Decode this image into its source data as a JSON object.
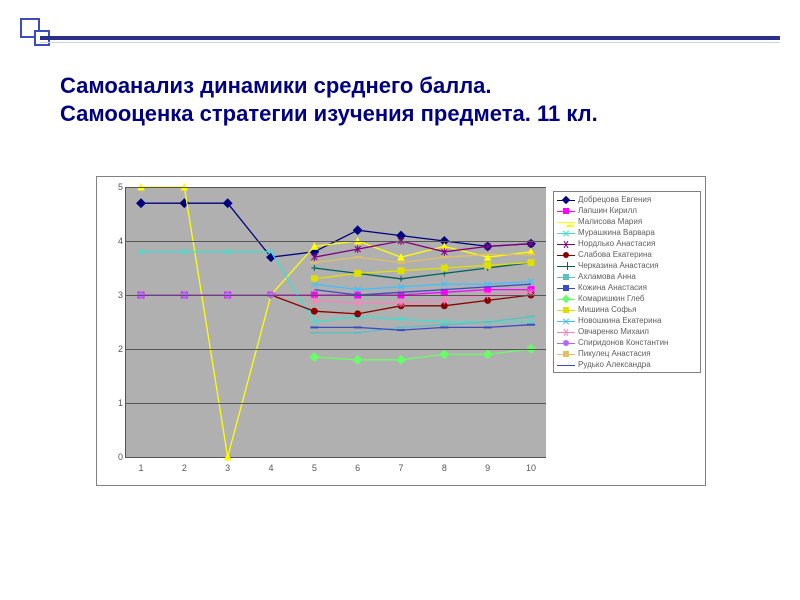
{
  "title_line1": "Самоанализ динамики среднего балла.",
  "title_line2": "Самооценка стратегии изучения предмета. 11 кл.",
  "chart": {
    "type": "line",
    "plot_bg": "#b0b0b0",
    "grid_color": "#555555",
    "outer_border": "#808080",
    "axis_fontsize": 9,
    "legend_bg": "#ffffff",
    "legend_border": "#808080",
    "legend_fontsize": 8,
    "xlim": [
      1,
      10
    ],
    "ylim": [
      0,
      5
    ],
    "xticks": [
      1,
      2,
      3,
      4,
      5,
      6,
      7,
      8,
      9,
      10
    ],
    "yticks": [
      0,
      1,
      2,
      3,
      4,
      5
    ],
    "series": [
      {
        "label": "Добрецова Евгения",
        "color": "#000080",
        "marker": "diamond",
        "fill": "#000080",
        "y": [
          4.7,
          4.7,
          4.7,
          3.7,
          3.8,
          4.2,
          4.1,
          4.0,
          3.9,
          3.95
        ]
      },
      {
        "label": "Лапшин Кирилл",
        "color": "#ff00ff",
        "marker": "square",
        "fill": "#ff00ff",
        "y": [
          3.0,
          3.0,
          3.0,
          3.0,
          3.0,
          3.0,
          3.0,
          3.05,
          3.1,
          3.1
        ]
      },
      {
        "label": "Малисова Мария",
        "color": "#ffff00",
        "marker": "triangle",
        "fill": "#ffff00",
        "y": [
          5.0,
          5.0,
          0.0,
          3.0,
          3.9,
          4.0,
          3.7,
          3.9,
          3.7,
          3.8
        ]
      },
      {
        "label": "Мурашкина Варвара",
        "color": "#40e0d0",
        "marker": "x",
        "fill": "#40e0d0",
        "y": [
          3.8,
          3.8,
          3.8,
          3.8,
          2.5,
          2.6,
          2.55,
          2.5,
          2.5,
          2.5
        ]
      },
      {
        "label": "Норд­лько Анастасия",
        "color": "#800080",
        "marker": "star",
        "fill": "#800080",
        "y": [
          null,
          null,
          null,
          null,
          3.7,
          3.85,
          4.0,
          3.8,
          3.9,
          3.95
        ]
      },
      {
        "label": "Слабова Екатерина",
        "color": "#8b0000",
        "marker": "circle",
        "fill": "#8b0000",
        "y": [
          3.0,
          3.0,
          3.0,
          3.0,
          2.7,
          2.65,
          2.8,
          2.8,
          2.9,
          3.0
        ]
      },
      {
        "label": "Черказина Анастасия",
        "color": "#006060",
        "marker": "plus",
        "fill": "#006060",
        "y": [
          null,
          null,
          null,
          null,
          3.5,
          3.4,
          3.3,
          3.4,
          3.5,
          3.6
        ]
      },
      {
        "label": "Ахламова Анна",
        "color": "#60c0c0",
        "marker": "dash",
        "fill": "#60c0c0",
        "y": [
          null,
          null,
          null,
          null,
          2.3,
          2.3,
          2.4,
          2.45,
          2.5,
          2.6
        ]
      },
      {
        "label": "Кожина Анастасия",
        "color": "#3b4cc0",
        "marker": "dash",
        "fill": "#3b4cc0",
        "y": [
          null,
          null,
          null,
          null,
          2.4,
          2.4,
          2.35,
          2.4,
          2.4,
          2.45
        ]
      },
      {
        "label": "Комаришкин Глеб",
        "color": "#66ff66",
        "marker": "diamond",
        "fill": "#66ff66",
        "y": [
          null,
          null,
          null,
          null,
          1.85,
          1.8,
          1.8,
          1.9,
          1.9,
          2.0
        ]
      },
      {
        "label": "Мишина Софья",
        "color": "#e0e000",
        "marker": "square",
        "fill": "#e0e000",
        "y": [
          null,
          null,
          null,
          null,
          3.3,
          3.4,
          3.45,
          3.5,
          3.55,
          3.6
        ]
      },
      {
        "label": "Новошкина Екатерина",
        "color": "#40c0ff",
        "marker": "x",
        "fill": "#40c0ff",
        "y": [
          null,
          null,
          null,
          null,
          3.2,
          3.1,
          3.15,
          3.2,
          3.2,
          3.25
        ]
      },
      {
        "label": "Овчаренко Михаил",
        "color": "#ff80c0",
        "marker": "star",
        "fill": "#ff80c0",
        "y": [
          null,
          null,
          null,
          null,
          2.9,
          2.85,
          2.85,
          2.9,
          3.0,
          3.05
        ]
      },
      {
        "label": "Спиридонов Константин",
        "color": "#b266ff",
        "marker": "circle",
        "fill": "#b266ff",
        "y": [
          3.0,
          3.0,
          3.0,
          3.0,
          null,
          null,
          null,
          null,
          null,
          null
        ]
      },
      {
        "label": "Пикулец Анастасия",
        "color": "#e0c060",
        "marker": "dash",
        "fill": "#e0c060",
        "y": [
          null,
          null,
          null,
          null,
          3.6,
          3.7,
          3.6,
          3.7,
          3.75,
          3.75
        ]
      },
      {
        "label": "Рудько Александра",
        "color": "#3b4cc0",
        "marker": "none",
        "fill": "#3b4cc0",
        "y": [
          null,
          null,
          null,
          null,
          3.1,
          3.0,
          3.05,
          3.1,
          3.15,
          3.2
        ]
      }
    ]
  }
}
